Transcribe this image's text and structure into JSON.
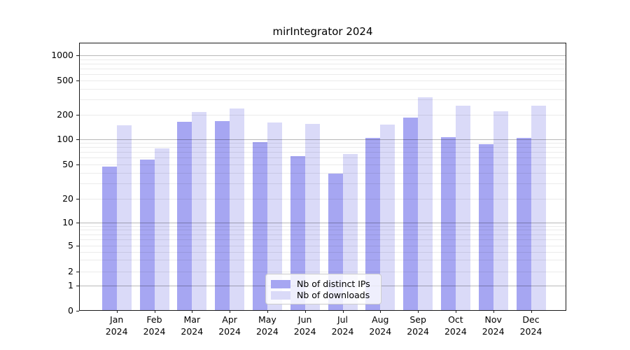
{
  "title": "mirIntegrator 2024",
  "chart_data": {
    "type": "bar",
    "title": "mirIntegrator 2024",
    "categories": [
      "Jan",
      "Feb",
      "Mar",
      "Apr",
      "May",
      "Jun",
      "Jul",
      "Aug",
      "Sep",
      "Oct",
      "Nov",
      "Dec"
    ],
    "category_year": "2024",
    "series": [
      {
        "name": "Nb of distinct IPs",
        "color": "#a6a6f2",
        "values": [
          47,
          57,
          162,
          165,
          92,
          63,
          39,
          104,
          183,
          105,
          87,
          104
        ]
      },
      {
        "name": "Nb of downloads",
        "color": "#dadaf8",
        "values": [
          148,
          78,
          214,
          235,
          160,
          154,
          67,
          150,
          319,
          254,
          217,
          252
        ]
      }
    ],
    "y_ticks": [
      0,
      1,
      2,
      5,
      10,
      20,
      50,
      100,
      200,
      500,
      1000
    ],
    "y_scale": "symlog",
    "ylim": [
      0,
      1400
    ],
    "xlabel": "",
    "ylabel": "",
    "grid": true,
    "legend_position": "lower-center"
  }
}
